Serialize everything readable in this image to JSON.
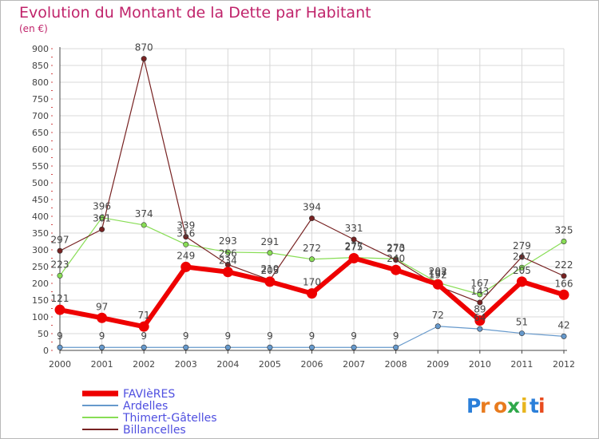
{
  "colors": {
    "title": "#c0246b",
    "axis": "#444444",
    "grid": "#d8d8d8",
    "tick_red": "#d24a4a",
    "legend_text": "#4f4fe0"
  },
  "logo": "Proxiti",
  "chart_data": {
    "type": "line",
    "title": "Evolution du Montant de la Dette par Habitant",
    "subtitle": "(en €)",
    "xlabel": "",
    "ylabel": "",
    "x": [
      "2000",
      "2001",
      "2002",
      "2003",
      "2004",
      "2005",
      "2006",
      "2007",
      "2008",
      "2009",
      "2010",
      "2011",
      "2012"
    ],
    "ylim": [
      0,
      900
    ],
    "yticks": [
      0,
      50,
      100,
      150,
      200,
      250,
      300,
      350,
      400,
      450,
      500,
      550,
      600,
      650,
      700,
      750,
      800,
      850,
      900
    ],
    "grid": true,
    "legend_position": "bottom-left",
    "series": [
      {
        "name": "FAVIèRES",
        "color": "#ee0000",
        "values": [
          121,
          97,
          71,
          249,
          234,
          205,
          170,
          275,
          240,
          197,
          89,
          205,
          166
        ]
      },
      {
        "name": "Ardelles",
        "color": "#6699cc",
        "values": [
          9,
          9,
          9,
          9,
          9,
          9,
          9,
          9,
          9,
          72,
          64,
          51,
          42
        ]
      },
      {
        "name": "Thimert-Gâtelles",
        "color": "#88dd55",
        "values": [
          223,
          396,
          374,
          316,
          293,
          291,
          272,
          277,
          273,
          202,
          167,
          247,
          325
        ]
      },
      {
        "name": "Billancelles",
        "color": "#772222",
        "values": [
          297,
          361,
          870,
          339,
          256,
          210,
          394,
          331,
          270,
          192,
          143,
          279,
          222
        ]
      }
    ]
  }
}
